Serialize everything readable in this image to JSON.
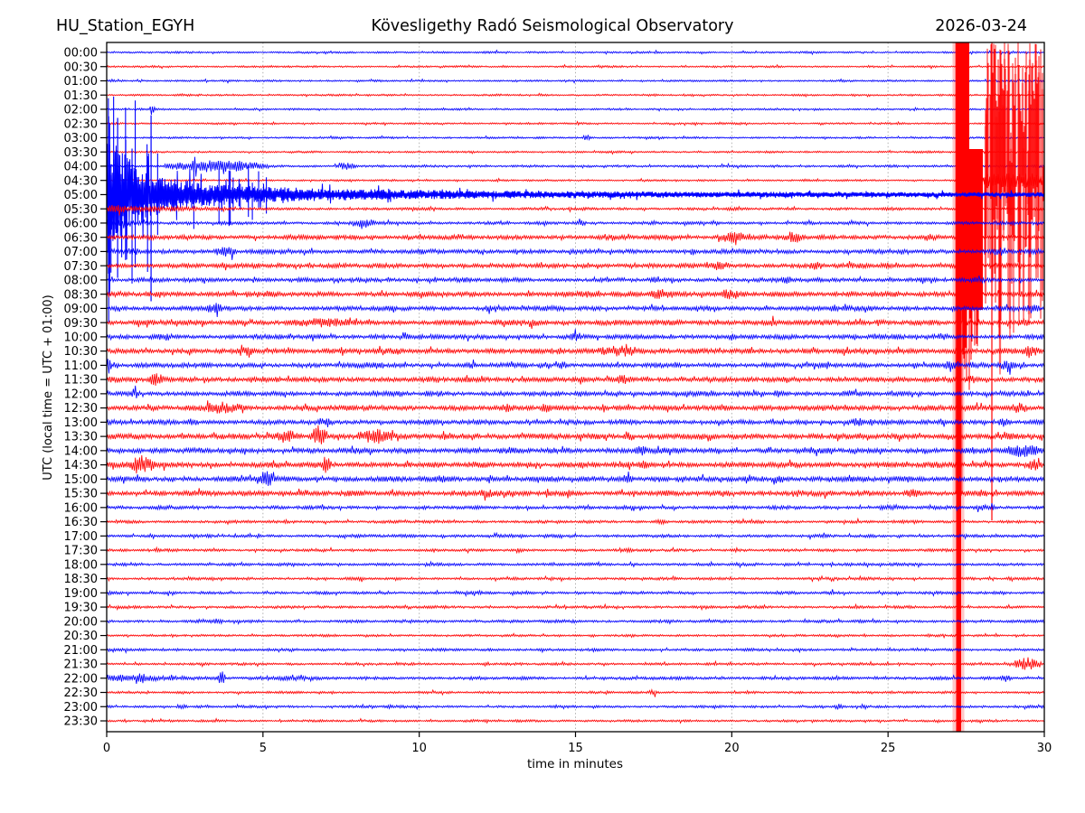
{
  "header": {
    "station": "HU_Station_EGYH",
    "title": "Kövesligethy Radó Seismological Observatory",
    "date": "2026-03-24"
  },
  "axes": {
    "xlabel": "time in minutes",
    "ylabel": "UTC (local time = UTC + 01:00)",
    "xmin": 0,
    "xmax": 30,
    "xticks": [
      0,
      5,
      10,
      15,
      20,
      25,
      30
    ],
    "grid": "vertical dotted at 5-minute intervals",
    "row_minutes": 30
  },
  "colors": {
    "trace_blue": "#0000ff",
    "trace_red": "#ff0000",
    "grid": "#b0b0b0",
    "axis": "#000000",
    "background": "#ffffff",
    "text": "#000000"
  },
  "chart_data": {
    "type": "line",
    "subtype": "helicorder-seismogram",
    "title": "Kövesligethy Radó Seismological Observatory",
    "station": "HU_Station_EGYH",
    "date": "2026-03-24",
    "xlabel": "time in minutes",
    "ylabel": "UTC (local time = UTC + 01:00)",
    "xlim": [
      0,
      30
    ],
    "rows_per_day": 48,
    "minutes_per_row": 30,
    "notable_events": [
      {
        "row": "04:30",
        "start_min": 27.2,
        "description": "Large earthquake onset: clipped red trace saturates from minute 27.2 to end of row, spikes span most of the plot height; thin clipped vertical line at minute 27.3 crosses all rows"
      },
      {
        "row": "05:00",
        "start_min": 0.0,
        "description": "Earthquake coda: very large blue amplitude at row start (with spikes crossing neighbouring rows) decaying over ~10 minutes, elevated to row end"
      },
      {
        "row": "05:30",
        "start_min": 0.0,
        "description": "Elevated red amplitude for first ~5 minutes (continued coda)"
      },
      {
        "row": "21:30",
        "start_min": 29.0,
        "description": "Short red burst near minute 29.5"
      },
      {
        "row": "22:00",
        "start_min": 0.0,
        "description": "Elevated blue noise for first ~7 minutes"
      }
    ],
    "rows": [
      {
        "label": "00:00",
        "color": "blue",
        "base_amp": 1.0,
        "bursts": []
      },
      {
        "label": "00:30",
        "color": "red",
        "base_amp": 1.0,
        "bursts": []
      },
      {
        "label": "01:00",
        "color": "blue",
        "base_amp": 1.0,
        "bursts": []
      },
      {
        "label": "01:30",
        "color": "red",
        "base_amp": 1.0,
        "bursts": []
      },
      {
        "label": "02:00",
        "color": "blue",
        "base_amp": 1.0,
        "bursts": [
          {
            "s": 1.38,
            "e": 1.55,
            "a": 7
          }
        ]
      },
      {
        "label": "02:30",
        "color": "red",
        "base_amp": 1.0,
        "bursts": []
      },
      {
        "label": "03:00",
        "color": "blue",
        "base_amp": 1.05,
        "bursts": [
          {
            "s": 15.2,
            "e": 15.5,
            "a": 3.5
          }
        ]
      },
      {
        "label": "03:30",
        "color": "red",
        "base_amp": 1.0,
        "bursts": []
      },
      {
        "label": "04:00",
        "color": "blue",
        "base_amp": 1.2,
        "bursts": [
          {
            "s": 1.8,
            "e": 5.2,
            "a": 7
          },
          {
            "s": 7.3,
            "e": 8.0,
            "a": 4
          }
        ]
      },
      {
        "label": "04:30",
        "color": "red",
        "base_amp": 1.0,
        "event": "onset",
        "bursts": []
      },
      {
        "label": "05:00",
        "color": "blue",
        "base_amp": 2.2,
        "event": "coda",
        "bursts": []
      },
      {
        "label": "05:30",
        "color": "red",
        "base_amp": 1.4,
        "bursts": [
          {
            "s": 0,
            "e": 4.8,
            "a": 4.5,
            "fade": true
          }
        ]
      },
      {
        "label": "06:00",
        "color": "blue",
        "base_amp": 1.6,
        "bursts": [
          {
            "s": 0,
            "e": 2,
            "a": 4.5,
            "fade": true
          },
          {
            "s": 7.7,
            "e": 8.7,
            "a": 5
          },
          {
            "s": 15.0,
            "e": 15.4,
            "a": 3
          }
        ]
      },
      {
        "label": "06:30",
        "color": "red",
        "base_amp": 2.4,
        "bursts": [
          {
            "s": 19.5,
            "e": 20.6,
            "a": 6
          },
          {
            "s": 21.6,
            "e": 22.4,
            "a": 6.5
          },
          {
            "s": 26.0,
            "e": 26.6,
            "a": 4
          }
        ]
      },
      {
        "label": "07:00",
        "color": "blue",
        "base_amp": 2.3,
        "bursts": [
          {
            "s": 0.5,
            "e": 1.2,
            "a": 4
          },
          {
            "s": 3.4,
            "e": 4.2,
            "a": 7
          },
          {
            "s": 18.5,
            "e": 19.0,
            "a": 4
          },
          {
            "s": 28.2,
            "e": 28.9,
            "a": 5
          }
        ]
      },
      {
        "label": "07:30",
        "color": "red",
        "base_amp": 2.4,
        "bursts": [
          {
            "s": 4.5,
            "e": 5.0,
            "a": 3.5
          },
          {
            "s": 19.2,
            "e": 20.0,
            "a": 5
          },
          {
            "s": 22.4,
            "e": 23.0,
            "a": 5
          },
          {
            "s": 24.7,
            "e": 25.2,
            "a": 4
          }
        ]
      },
      {
        "label": "08:00",
        "color": "blue",
        "base_amp": 2.2,
        "bursts": [
          {
            "s": 21.5,
            "e": 22.0,
            "a": 4
          },
          {
            "s": 27.6,
            "e": 28.2,
            "a": 4
          }
        ]
      },
      {
        "label": "08:30",
        "color": "red",
        "base_amp": 2.6,
        "bursts": [
          {
            "s": 15.0,
            "e": 15.7,
            "a": 4
          },
          {
            "s": 17.3,
            "e": 18.3,
            "a": 6
          },
          {
            "s": 19.5,
            "e": 20.3,
            "a": 6
          }
        ]
      },
      {
        "label": "09:00",
        "color": "blue",
        "base_amp": 2.4,
        "bursts": [
          {
            "s": 3.1,
            "e": 3.8,
            "a": 6.5
          },
          {
            "s": 12.0,
            "e": 12.5,
            "a": 4
          },
          {
            "s": 23.0,
            "e": 23.5,
            "a": 4
          },
          {
            "s": 29.3,
            "e": 29.9,
            "a": 5
          }
        ]
      },
      {
        "label": "09:30",
        "color": "red",
        "base_amp": 2.7,
        "bursts": [
          {
            "s": 5.6,
            "e": 8.3,
            "a": 5
          },
          {
            "s": 13.4,
            "e": 14.0,
            "a": 4
          },
          {
            "s": 21.0,
            "e": 21.5,
            "a": 4
          },
          {
            "s": 24.5,
            "e": 25.0,
            "a": 4
          },
          {
            "s": 29.0,
            "e": 29.6,
            "a": 4.5
          }
        ]
      },
      {
        "label": "10:00",
        "color": "blue",
        "base_amp": 2.4,
        "bursts": [
          {
            "s": 1.5,
            "e": 2.2,
            "a": 5
          },
          {
            "s": 9.3,
            "e": 9.8,
            "a": 4
          },
          {
            "s": 14.7,
            "e": 15.3,
            "a": 4.5
          },
          {
            "s": 26.4,
            "e": 27.0,
            "a": 4
          }
        ]
      },
      {
        "label": "10:30",
        "color": "red",
        "base_amp": 2.7,
        "bursts": [
          {
            "s": 4.2,
            "e": 4.8,
            "a": 5
          },
          {
            "s": 9.0,
            "e": 9.5,
            "a": 4
          },
          {
            "s": 15.5,
            "e": 17.3,
            "a": 6
          },
          {
            "s": 29.2,
            "e": 29.9,
            "a": 6
          }
        ]
      },
      {
        "label": "11:00",
        "color": "blue",
        "base_amp": 2.4,
        "bursts": [
          {
            "s": 0,
            "e": 0.14,
            "a": 12
          },
          {
            "s": 8.4,
            "e": 9.0,
            "a": 4
          },
          {
            "s": 11.4,
            "e": 12.0,
            "a": 4
          },
          {
            "s": 14.3,
            "e": 14.9,
            "a": 4
          },
          {
            "s": 26.7,
            "e": 27.3,
            "a": 5
          },
          {
            "s": 28.4,
            "e": 29.3,
            "a": 5.5
          }
        ]
      },
      {
        "label": "11:30",
        "color": "red",
        "base_amp": 2.7,
        "bursts": [
          {
            "s": 1.3,
            "e": 1.9,
            "a": 7
          },
          {
            "s": 10.3,
            "e": 10.8,
            "a": 4
          },
          {
            "s": 16.2,
            "e": 16.8,
            "a": 6
          },
          {
            "s": 21.4,
            "e": 22.0,
            "a": 4
          },
          {
            "s": 27.4,
            "e": 28.0,
            "a": 4
          }
        ]
      },
      {
        "label": "12:00",
        "color": "blue",
        "base_amp": 2.4,
        "bursts": [
          {
            "s": 0.75,
            "e": 1.1,
            "a": 5
          },
          {
            "s": 10.0,
            "e": 10.5,
            "a": 3.5
          },
          {
            "s": 21.2,
            "e": 21.8,
            "a": 4
          },
          {
            "s": 23.4,
            "e": 24.0,
            "a": 4
          }
        ]
      },
      {
        "label": "12:30",
        "color": "red",
        "base_amp": 2.7,
        "bursts": [
          {
            "s": 2.8,
            "e": 4.6,
            "a": 6
          },
          {
            "s": 12.5,
            "e": 13.0,
            "a": 5
          },
          {
            "s": 13.8,
            "e": 14.3,
            "a": 5
          },
          {
            "s": 19.4,
            "e": 20.0,
            "a": 4
          },
          {
            "s": 28.9,
            "e": 29.5,
            "a": 6
          }
        ]
      },
      {
        "label": "13:00",
        "color": "blue",
        "base_amp": 2.4,
        "bursts": [
          {
            "s": 2.5,
            "e": 3.0,
            "a": 4
          },
          {
            "s": 6.7,
            "e": 7.3,
            "a": 4.5
          },
          {
            "s": 23.7,
            "e": 24.3,
            "a": 5
          },
          {
            "s": 28.4,
            "e": 29.0,
            "a": 4
          }
        ]
      },
      {
        "label": "13:30",
        "color": "red",
        "base_amp": 2.9,
        "bursts": [
          {
            "s": 5.3,
            "e": 6.2,
            "a": 7
          },
          {
            "s": 6.5,
            "e": 7.1,
            "a": 11
          },
          {
            "s": 7.9,
            "e": 9.3,
            "a": 8
          },
          {
            "s": 16.5,
            "e": 17.0,
            "a": 5
          },
          {
            "s": 28.4,
            "e": 29.2,
            "a": 5
          }
        ]
      },
      {
        "label": "14:00",
        "color": "blue",
        "base_amp": 2.7,
        "bursts": [
          {
            "s": 16.8,
            "e": 17.4,
            "a": 5
          },
          {
            "s": 19.2,
            "e": 19.7,
            "a": 4
          },
          {
            "s": 27.4,
            "e": 28.0,
            "a": 4
          },
          {
            "s": 28.6,
            "e": 30.0,
            "a": 7
          }
        ]
      },
      {
        "label": "14:30",
        "color": "red",
        "base_amp": 2.9,
        "bursts": [
          {
            "s": 0.7,
            "e": 1.6,
            "a": 10
          },
          {
            "s": 6.8,
            "e": 7.2,
            "a": 9
          },
          {
            "s": 17.0,
            "e": 17.5,
            "a": 5
          },
          {
            "s": 29.4,
            "e": 30.0,
            "a": 6
          }
        ]
      },
      {
        "label": "15:00",
        "color": "blue",
        "base_amp": 2.7,
        "bursts": [
          {
            "s": 4.7,
            "e": 5.4,
            "a": 9
          },
          {
            "s": 10.4,
            "e": 11.0,
            "a": 4
          },
          {
            "s": 12.1,
            "e": 12.4,
            "a": 5
          },
          {
            "s": 16.2,
            "e": 16.9,
            "a": 5
          },
          {
            "s": 21.2,
            "e": 21.8,
            "a": 5
          }
        ]
      },
      {
        "label": "15:30",
        "color": "red",
        "base_amp": 2.7,
        "bursts": [
          {
            "s": 6.0,
            "e": 6.6,
            "a": 5
          },
          {
            "s": 11.8,
            "e": 12.5,
            "a": 5
          },
          {
            "s": 14.5,
            "e": 15.0,
            "a": 4
          },
          {
            "s": 19.5,
            "e": 20.0,
            "a": 4
          },
          {
            "s": 25.4,
            "e": 26.2,
            "a": 5
          },
          {
            "s": 27.7,
            "e": 28.3,
            "a": 4
          }
        ]
      },
      {
        "label": "16:00",
        "color": "blue",
        "base_amp": 1.8,
        "bursts": [
          {
            "s": 24.4,
            "e": 25.8,
            "a": 3
          },
          {
            "s": 27.6,
            "e": 28.6,
            "a": 3.5
          }
        ]
      },
      {
        "label": "16:30",
        "color": "red",
        "base_amp": 1.5,
        "bursts": [
          {
            "s": 17.5,
            "e": 18.0,
            "a": 3
          }
        ]
      },
      {
        "label": "17:00",
        "color": "blue",
        "base_amp": 1.6,
        "bursts": [
          {
            "s": 21.0,
            "e": 21.4,
            "a": 2.5
          }
        ]
      },
      {
        "label": "17:30",
        "color": "red",
        "base_amp": 1.4,
        "bursts": [
          {
            "s": 13.0,
            "e": 13.4,
            "a": 3
          },
          {
            "s": 16.5,
            "e": 16.9,
            "a": 2.5
          }
        ]
      },
      {
        "label": "18:00",
        "color": "blue",
        "base_amp": 1.5,
        "bursts": []
      },
      {
        "label": "18:30",
        "color": "red",
        "base_amp": 1.4,
        "bursts": [
          {
            "s": 8.0,
            "e": 8.3,
            "a": 2.5
          }
        ]
      },
      {
        "label": "19:00",
        "color": "blue",
        "base_amp": 1.5,
        "bursts": [
          {
            "s": 0.05,
            "e": 0.2,
            "a": 5
          },
          {
            "s": 23.0,
            "e": 23.4,
            "a": 2.5
          }
        ]
      },
      {
        "label": "19:30",
        "color": "red",
        "base_amp": 1.4,
        "bursts": []
      },
      {
        "label": "20:00",
        "color": "blue",
        "base_amp": 1.5,
        "bursts": [
          {
            "s": 3.3,
            "e": 3.8,
            "a": 3
          }
        ]
      },
      {
        "label": "20:30",
        "color": "red",
        "base_amp": 1.2,
        "bursts": []
      },
      {
        "label": "21:00",
        "color": "blue",
        "base_amp": 1.4,
        "bursts": []
      },
      {
        "label": "21:30",
        "color": "red",
        "base_amp": 1.3,
        "bursts": [
          {
            "s": 12.0,
            "e": 12.3,
            "a": 2.5
          },
          {
            "s": 29.0,
            "e": 29.9,
            "a": 7
          }
        ]
      },
      {
        "label": "22:00",
        "color": "blue",
        "base_amp": 1.6,
        "bursts": [
          {
            "s": 0,
            "e": 4.0,
            "a": 4.5,
            "fade": true
          },
          {
            "s": 0.9,
            "e": 1.3,
            "a": 6
          },
          {
            "s": 3.55,
            "e": 3.8,
            "a": 8
          },
          {
            "s": 4.0,
            "e": 7.5,
            "a": 2.6
          },
          {
            "s": 28.5,
            "e": 29.0,
            "a": 4
          }
        ]
      },
      {
        "label": "22:30",
        "color": "red",
        "base_amp": 1.2,
        "bursts": [
          {
            "s": 17.3,
            "e": 17.7,
            "a": 3
          }
        ]
      },
      {
        "label": "23:00",
        "color": "blue",
        "base_amp": 1.3,
        "bursts": [
          {
            "s": 2.2,
            "e": 2.6,
            "a": 3
          },
          {
            "s": 8.8,
            "e": 9.2,
            "a": 2.5
          },
          {
            "s": 23.2,
            "e": 23.6,
            "a": 3
          }
        ]
      },
      {
        "label": "23:30",
        "color": "red",
        "base_amp": 1.2,
        "bursts": []
      }
    ]
  }
}
